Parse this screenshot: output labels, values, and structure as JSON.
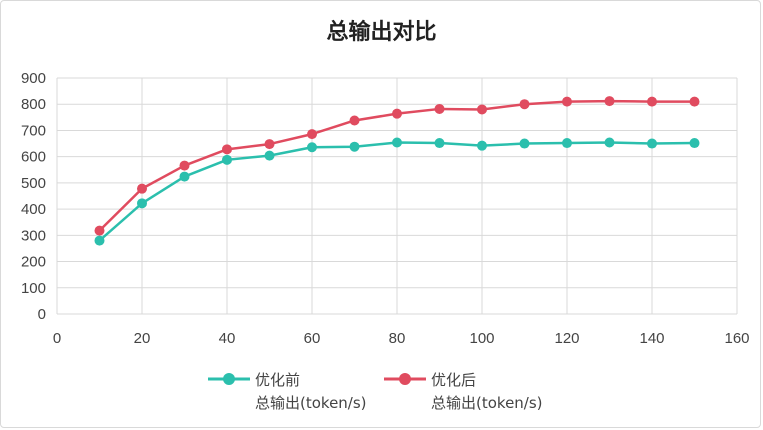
{
  "chart_data": {
    "type": "line",
    "title": "总输出对比",
    "xlabel": "",
    "ylabel": "",
    "xlim": [
      0,
      160
    ],
    "ylim": [
      0,
      900
    ],
    "x_ticks": [
      0,
      20,
      40,
      60,
      80,
      100,
      120,
      140,
      160
    ],
    "y_ticks": [
      0,
      100,
      200,
      300,
      400,
      500,
      600,
      700,
      800,
      900
    ],
    "grid": true,
    "legend_position": "bottom",
    "x": [
      10,
      20,
      30,
      40,
      50,
      60,
      70,
      80,
      90,
      100,
      110,
      120,
      130,
      140,
      150
    ],
    "series": [
      {
        "name": "优化前 总输出(token/s)",
        "legend_lines": [
          "优化前",
          "总输出(token/s)"
        ],
        "color": "#2bbfad",
        "values": [
          280,
          422,
          524,
          588,
          604,
          636,
          638,
          654,
          652,
          642,
          650,
          652,
          654,
          650,
          652
        ]
      },
      {
        "name": "优化后 总输出(token/s)",
        "legend_lines": [
          "优化后",
          "总输出(token/s)"
        ],
        "color": "#e04b5f",
        "values": [
          318,
          478,
          566,
          628,
          648,
          686,
          738,
          764,
          782,
          780,
          800,
          810,
          812,
          810,
          810
        ]
      }
    ]
  }
}
